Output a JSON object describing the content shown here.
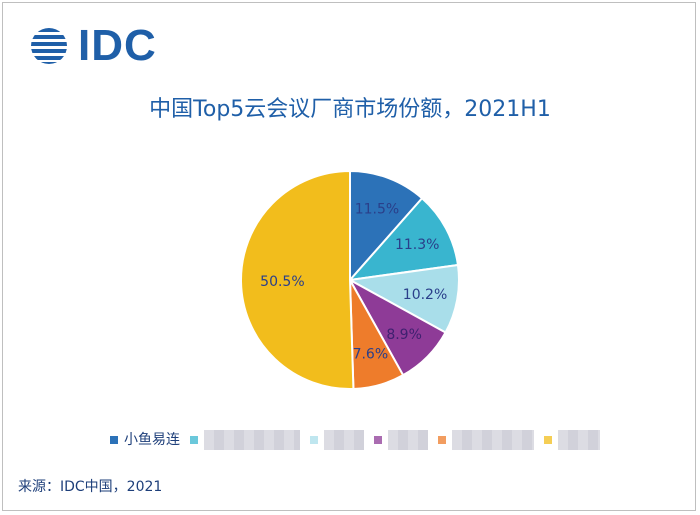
{
  "logo": {
    "text": "IDC"
  },
  "chart_data": {
    "type": "pie",
    "title": "中国Top5云会议厂商市场份额，2021H1",
    "slices": [
      {
        "value": 11.5,
        "label": "11.5%",
        "color": "#2c72b8",
        "label_color": "#2a3f8a"
      },
      {
        "value": 11.3,
        "label": "11.3%",
        "color": "#39b5cf",
        "label_color": "#2a3f8a"
      },
      {
        "value": 10.2,
        "label": "10.2%",
        "color": "#a9deea",
        "label_color": "#2a3f8a"
      },
      {
        "value": 8.9,
        "label": "8.9%",
        "color": "#8e3b97",
        "label_color": "#3f2070"
      },
      {
        "value": 7.6,
        "label": "7.6%",
        "color": "#ee7c2b",
        "label_color": "#2a3f8a"
      },
      {
        "value": 50.5,
        "label": "50.5%",
        "color": "#f2bd1c",
        "label_color": "#2a3f8a"
      }
    ],
    "legend": {
      "visible_label": "小鱼易连",
      "visible_color": "#2c72b8",
      "blurred_colors": [
        "#39b5cf",
        "#a9deea",
        "#8e3b97",
        "#ee7c2b",
        "#f2bd1c"
      ]
    }
  },
  "source": "来源：IDC中国，2021"
}
